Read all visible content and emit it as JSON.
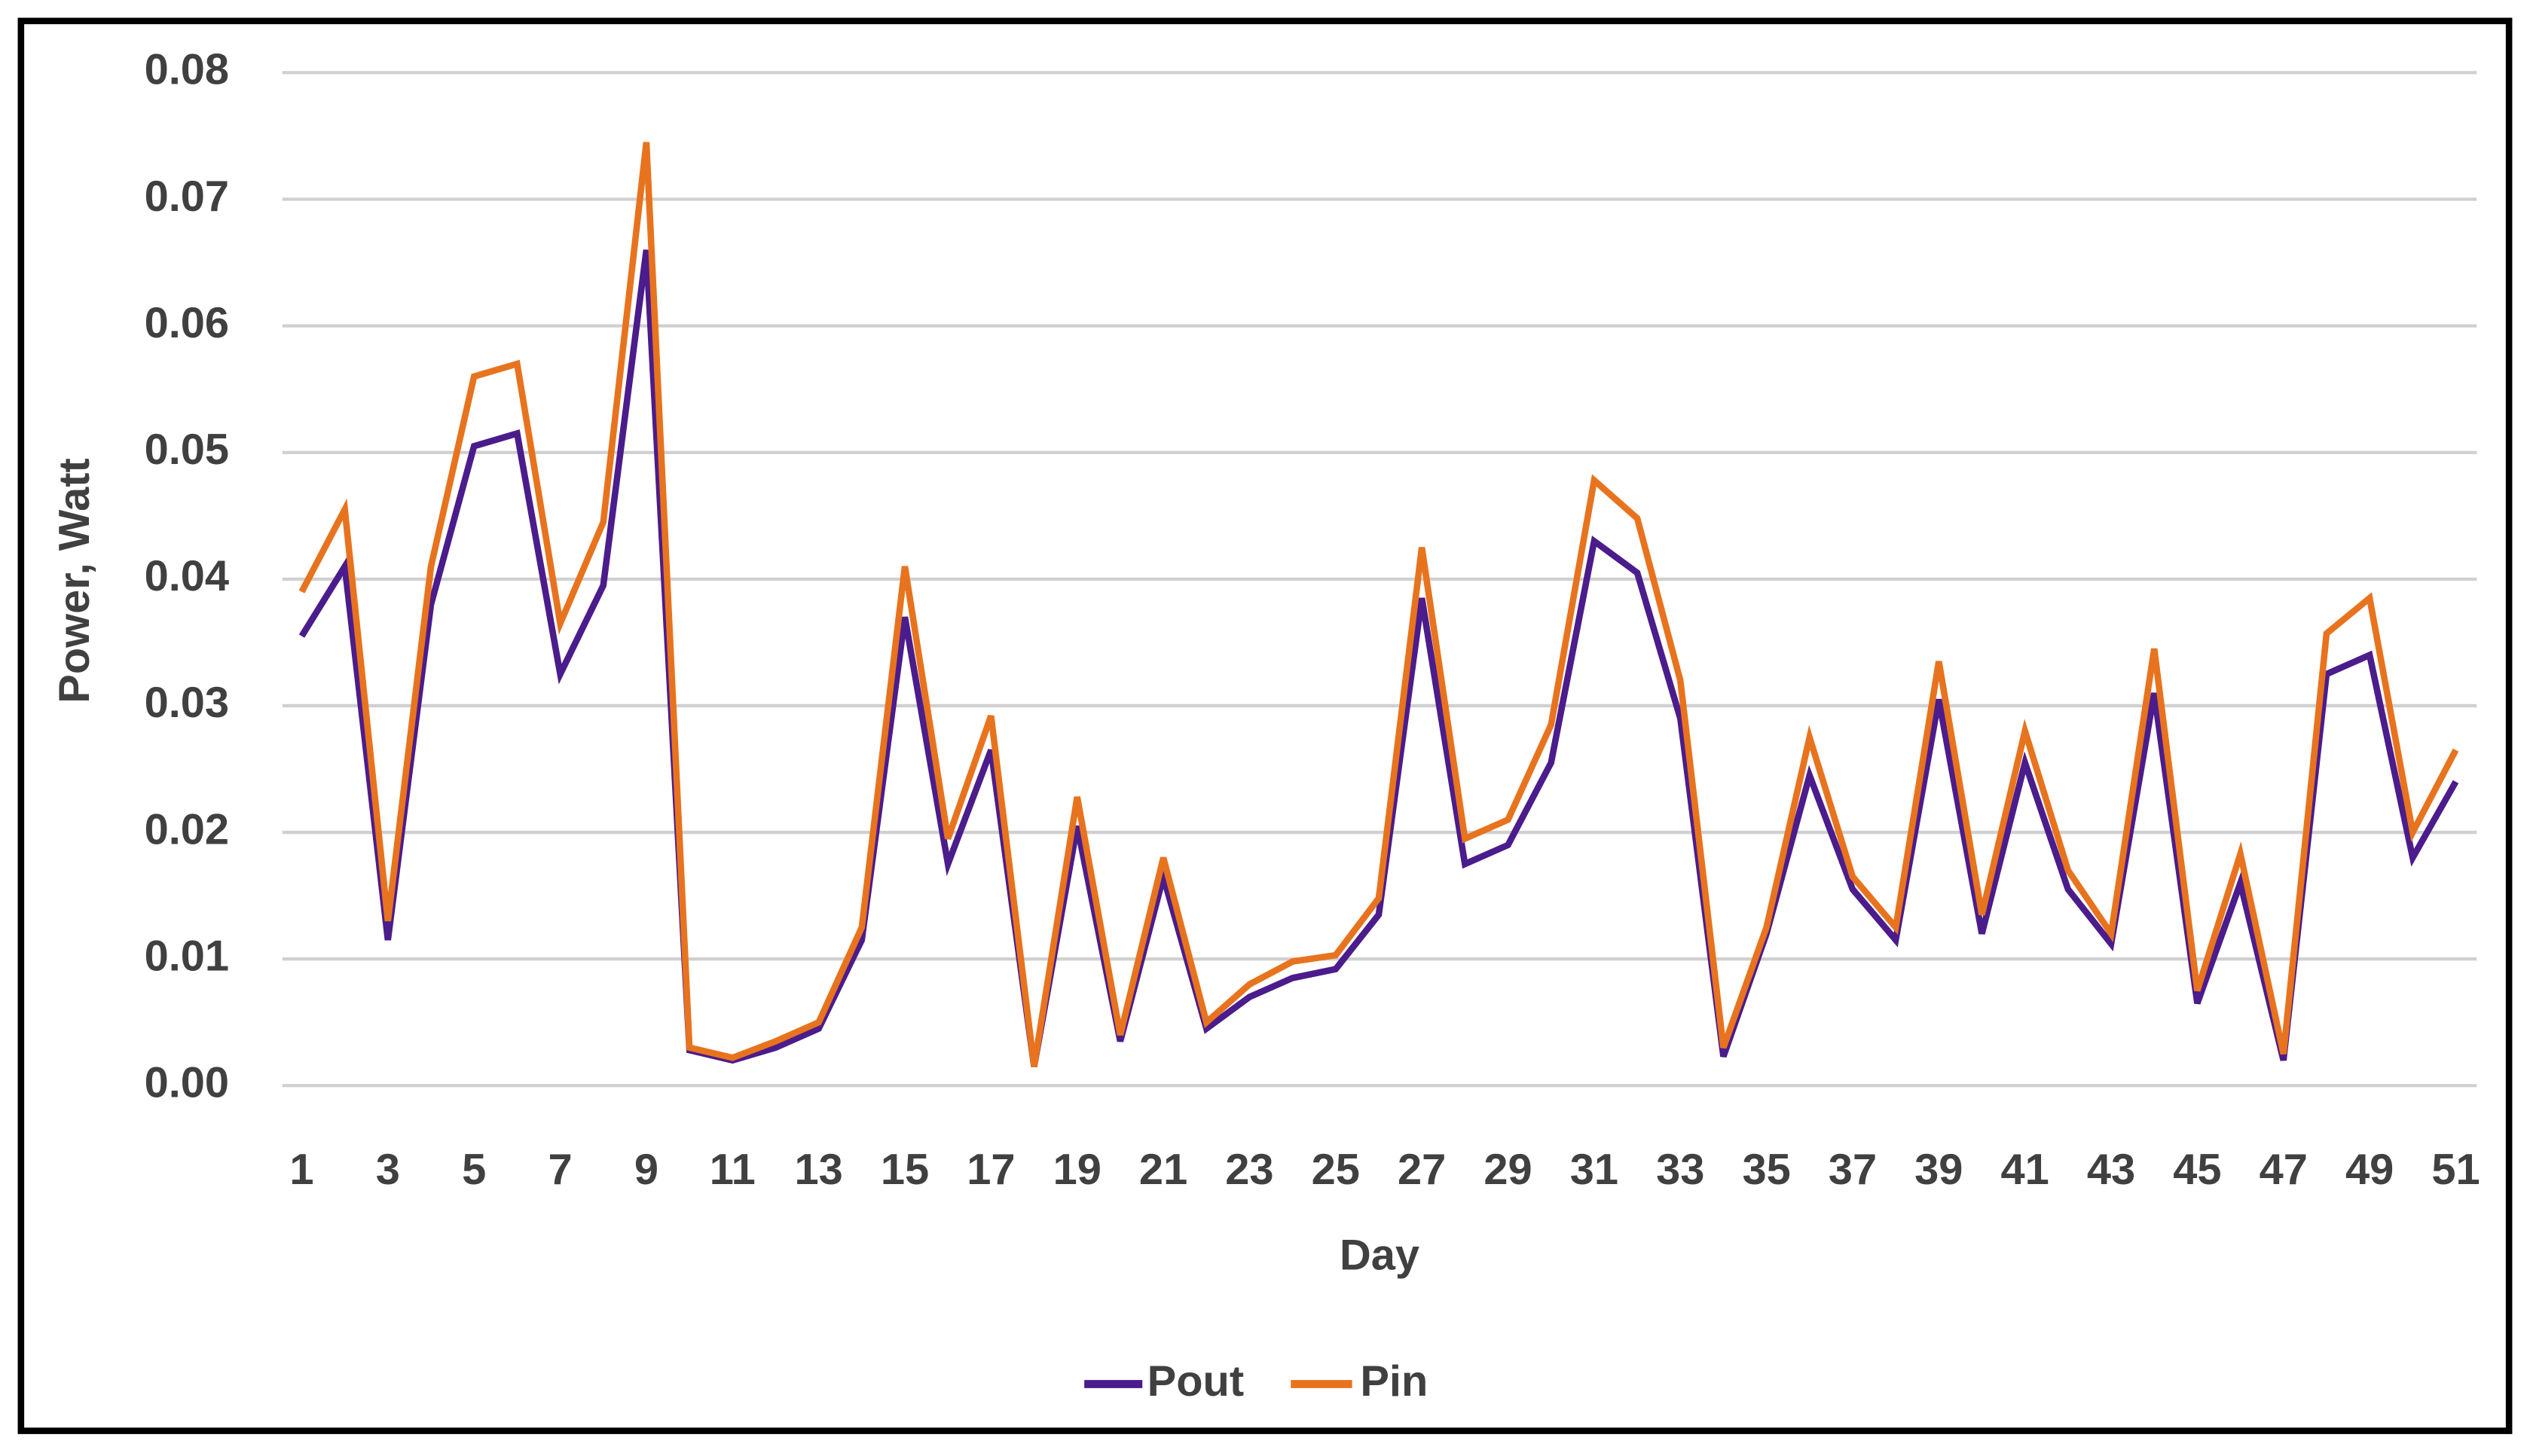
{
  "chart_data": {
    "type": "line",
    "y_label": "Power, Watt",
    "x_label": "Day",
    "x": [
      1,
      2,
      3,
      4,
      5,
      6,
      7,
      8,
      9,
      10,
      11,
      12,
      13,
      14,
      15,
      16,
      17,
      18,
      19,
      20,
      21,
      22,
      23,
      24,
      25,
      26,
      27,
      28,
      29,
      30,
      31,
      32,
      33,
      34,
      35,
      36,
      37,
      38,
      39,
      40,
      41,
      42,
      43,
      44,
      45,
      46,
      47,
      48,
      49,
      50,
      51
    ],
    "xlim": [
      1,
      51
    ],
    "xticks": [
      1,
      3,
      5,
      7,
      9,
      11,
      13,
      15,
      17,
      19,
      21,
      23,
      25,
      27,
      29,
      31,
      33,
      35,
      37,
      39,
      41,
      43,
      45,
      47,
      49,
      51
    ],
    "ylim": [
      0,
      0.08
    ],
    "yticks": [
      {
        "value": 0,
        "label": "0.00"
      },
      0.01,
      0.02,
      0.03,
      0.04,
      0.05,
      0.06,
      0.07,
      0.08
    ],
    "grid": true,
    "legend": "bottom",
    "series": [
      {
        "name": "Pout",
        "color": "#4b1c8c",
        "values": [
          0.0355,
          0.041,
          0.0115,
          0.038,
          0.0505,
          0.0515,
          0.0325,
          0.0395,
          0.066,
          0.0028,
          0.002,
          0.003,
          0.0045,
          0.0115,
          0.037,
          0.0175,
          0.0265,
          0.0015,
          0.0205,
          0.0035,
          0.0165,
          0.0045,
          0.007,
          0.0085,
          0.0092,
          0.0135,
          0.0385,
          0.0175,
          0.019,
          0.0255,
          0.043,
          0.0405,
          0.029,
          0.0023,
          0.012,
          0.0245,
          0.0155,
          0.0115,
          0.0305,
          0.012,
          0.0255,
          0.0155,
          0.0112,
          0.031,
          0.0065,
          0.016,
          0.002,
          0.0325,
          0.034,
          0.018,
          0.024
        ]
      },
      {
        "name": "Pin",
        "color": "#e8731e",
        "values": [
          0.039,
          0.0455,
          0.013,
          0.041,
          0.056,
          0.057,
          0.0365,
          0.0445,
          0.0745,
          0.003,
          0.0022,
          0.0035,
          0.005,
          0.0125,
          0.041,
          0.0195,
          0.0292,
          0.0015,
          0.0228,
          0.004,
          0.018,
          0.005,
          0.008,
          0.0098,
          0.0103,
          0.0148,
          0.0425,
          0.0195,
          0.021,
          0.0285,
          0.0478,
          0.0448,
          0.032,
          0.003,
          0.0125,
          0.0275,
          0.0165,
          0.0125,
          0.0335,
          0.0135,
          0.028,
          0.017,
          0.012,
          0.0345,
          0.0075,
          0.0183,
          0.0025,
          0.0357,
          0.0385,
          0.02,
          0.0265
        ]
      }
    ]
  }
}
